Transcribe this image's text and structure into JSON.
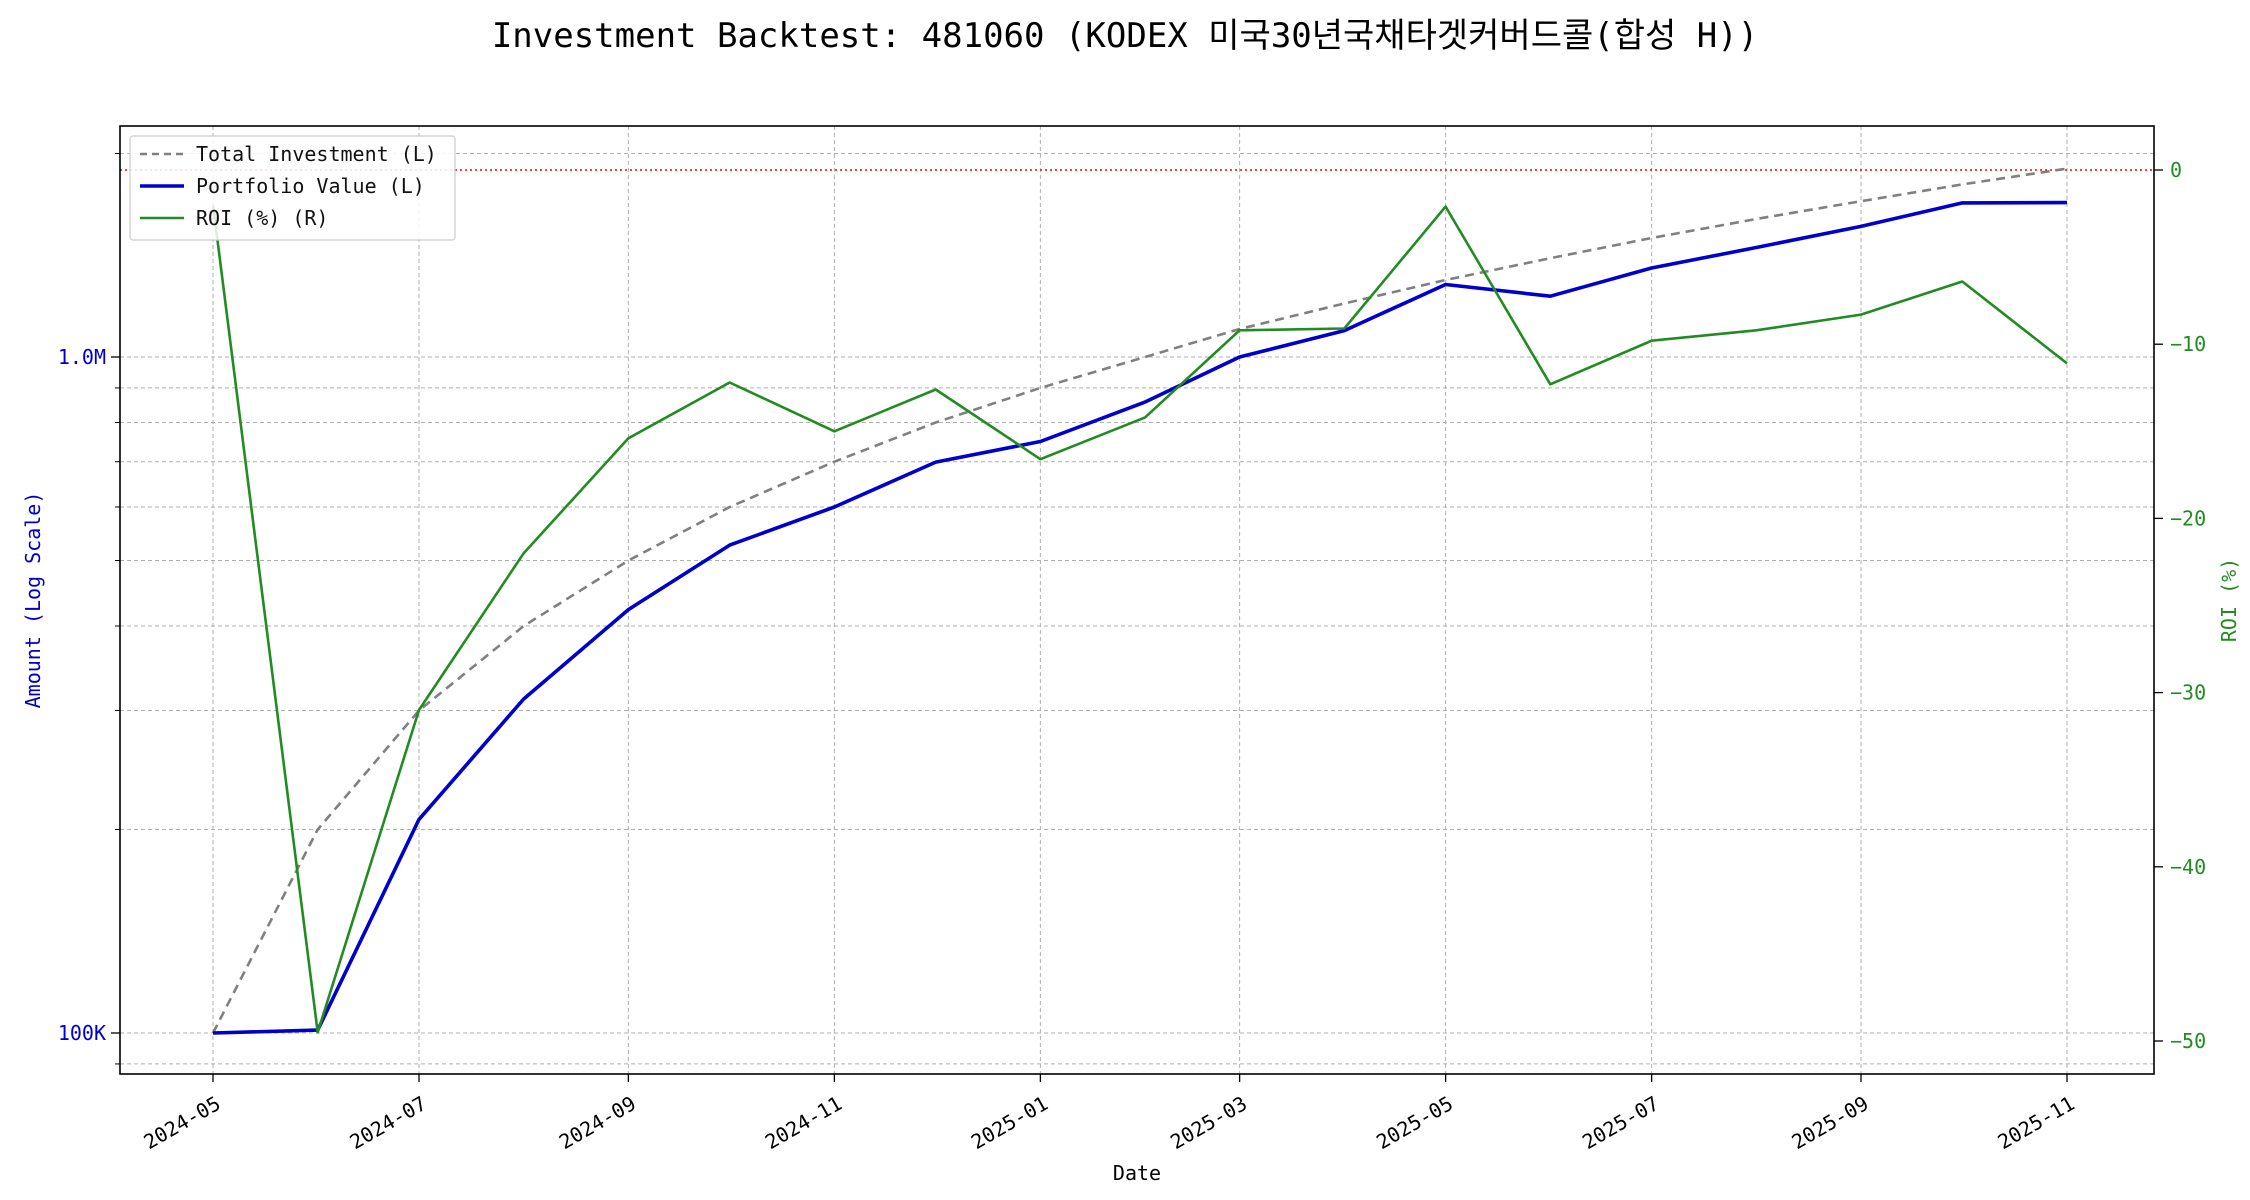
{
  "chart_data": {
    "type": "line",
    "title": "Investment Backtest: 481060 (KODEX 미국30년국채타겟커버드콜(합성 H))",
    "xlabel": "Date",
    "ylabel_left": "Amount (Log Scale)",
    "ylabel_right": "ROI (%)",
    "left_scale": "log",
    "grid": true,
    "legend_position": "top-left",
    "x_tick_labels": [
      "2024-05",
      "2024-07",
      "2024-09",
      "2024-11",
      "2025-01",
      "2025-03",
      "2025-05",
      "2025-07",
      "2025-09",
      "2025-11"
    ],
    "left_tick_labels": [
      "100K",
      "1.0M"
    ],
    "right_tick_labels": [
      "0",
      "−10",
      "−20",
      "−30",
      "−40",
      "−50"
    ],
    "right_ylim": [
      -52,
      2
    ],
    "x": [
      "2024-05-01",
      "2024-06-01",
      "2024-07-01",
      "2024-08-01",
      "2024-09-01",
      "2024-10-01",
      "2024-11-01",
      "2024-12-01",
      "2025-01-01",
      "2025-02-01",
      "2025-03-01",
      "2025-04-01",
      "2025-05-01",
      "2025-06-01",
      "2025-07-01",
      "2025-08-01",
      "2025-09-01",
      "2025-10-01",
      "2025-11-01"
    ],
    "series": [
      {
        "name": "Total Investment (L)",
        "axis": "left",
        "color": "#808080",
        "style": "dashed",
        "values": [
          100000,
          200000,
          300000,
          400000,
          500000,
          600000,
          700000,
          800000,
          900000,
          1000000,
          1100000,
          1200000,
          1300000,
          1400000,
          1500000,
          1600000,
          1700000,
          1800000,
          1900000
        ]
      },
      {
        "name": "Portfolio Value (L)",
        "axis": "left",
        "color": "#0000cc",
        "style": "solid",
        "values": [
          100000,
          101000,
          207000,
          312000,
          423000,
          527000,
          600000,
          699000,
          750000,
          858000,
          1000000,
          1094000,
          1280000,
          1230000,
          1354000,
          1452000,
          1560000,
          1690000,
          1692000
        ]
      },
      {
        "name": "ROI (%) (R)",
        "axis": "right",
        "color": "#228b22",
        "style": "solid",
        "values": [
          -2.0,
          -49.5,
          -31.0,
          -22.0,
          -15.4,
          -12.2,
          -15.0,
          -12.6,
          -16.6,
          -14.2,
          -9.2,
          -9.1,
          -2.1,
          -12.3,
          -9.8,
          -9.2,
          -8.3,
          -6.4,
          -11.1
        ]
      }
    ],
    "reference_line": {
      "axis": "right",
      "value": 0,
      "color": "#ff0000",
      "style": "dotted"
    }
  }
}
